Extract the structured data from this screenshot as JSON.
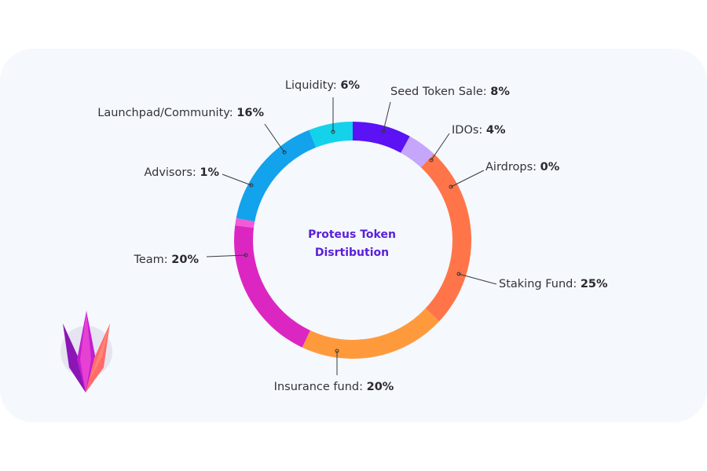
{
  "chart_data": {
    "type": "pie",
    "variant": "donut",
    "center_title": [
      "Proteus Token",
      "Disrtibution"
    ],
    "slices": [
      {
        "label": "Seed Token Sale",
        "value": 8,
        "color": "#5b12f5"
      },
      {
        "label": "IDOs",
        "value": 4,
        "color": "#c5a6fb"
      },
      {
        "label": "Airdrops",
        "value": 0,
        "color": "#c5a6fb"
      },
      {
        "label": "Staking Fund",
        "value": 25,
        "color": "#ff7549"
      },
      {
        "label": "Insurance fund",
        "value": 20,
        "color": "#ff9a3c"
      },
      {
        "label": "Team",
        "value": 20,
        "color": "#dc26c1"
      },
      {
        "label": "Advisors",
        "value": 1,
        "color": "#f25ad8"
      },
      {
        "label": "Launchpad/Community",
        "value": 16,
        "color": "#13a2ec"
      },
      {
        "label": "Liquidity",
        "value": 6,
        "color": "#13d2ea"
      }
    ],
    "value_suffix": "%"
  },
  "logo": {
    "icon": "crown-icon",
    "colors": [
      "#c11fd0",
      "#f04ad4",
      "#ff6a6a",
      "#8a16b5"
    ]
  }
}
